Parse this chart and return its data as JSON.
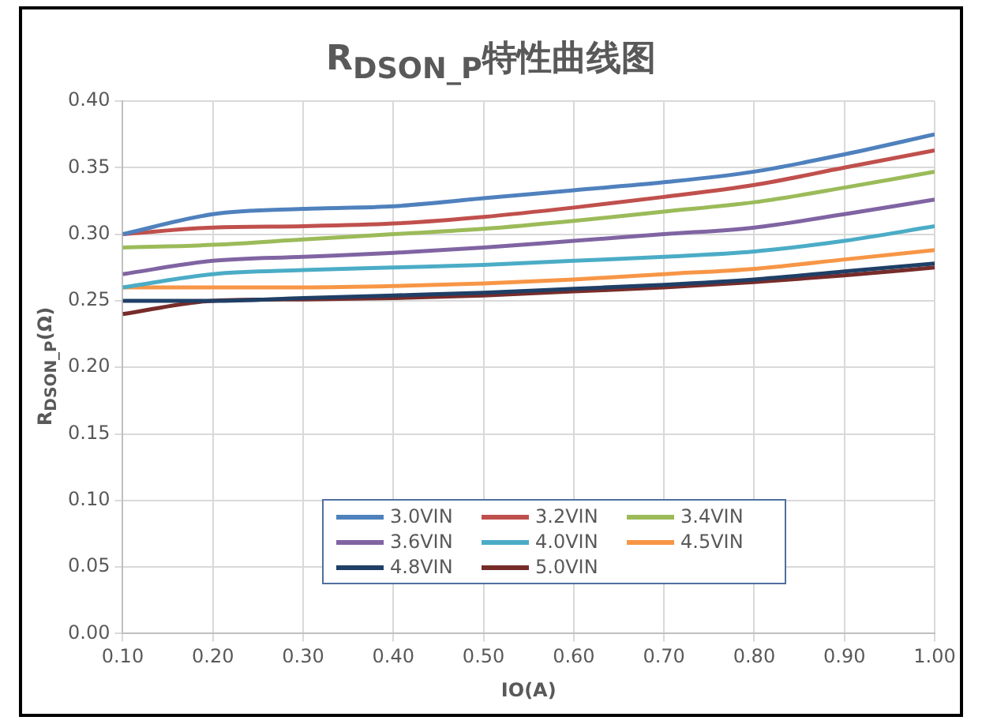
{
  "chart_data": {
    "type": "line",
    "title": "R$_{DSON_P}$特性曲线图",
    "xlabel": "IO(A)",
    "ylabel": "R$_{DSON_P}$(Ω)",
    "x": [
      0.1,
      0.2,
      0.3,
      0.4,
      0.5,
      0.6,
      0.7,
      0.8,
      0.9,
      1.0
    ],
    "xlim": [
      0.1,
      1.0
    ],
    "xticks": [
      {
        "value": 0.1,
        "label": "0.10"
      },
      {
        "value": 0.2,
        "label": "0.20"
      },
      {
        "value": 0.3,
        "label": "0.30"
      },
      {
        "value": 0.4,
        "label": "0.40"
      },
      {
        "value": 0.5,
        "label": "0.50"
      },
      {
        "value": 0.6,
        "label": "0.60"
      },
      {
        "value": 0.7,
        "label": "0.70"
      },
      {
        "value": 0.8,
        "label": "0.80"
      },
      {
        "value": 0.9,
        "label": "0.90"
      },
      {
        "value": 1.0,
        "label": "1.00"
      }
    ],
    "ylim": [
      0,
      0.4
    ],
    "yticks": [
      {
        "value": 0,
        "label": "0.00"
      },
      {
        "value": 0.05,
        "label": "0.05"
      },
      {
        "value": 0.1,
        "label": "0.10"
      },
      {
        "value": 0.15,
        "label": "0.15"
      },
      {
        "value": 0.2,
        "label": "0.20"
      },
      {
        "value": 0.25,
        "label": "0.25"
      },
      {
        "value": 0.3,
        "label": "0.30"
      },
      {
        "value": 0.35,
        "label": "0.35"
      },
      {
        "value": 0.4,
        "label": "0.40"
      }
    ],
    "grid": true,
    "legend": "bottom",
    "marker": "none",
    "line_style": "solid",
    "series": [
      {
        "name": "3.0VIN",
        "color": "#4f81bd",
        "values": [
          0.3,
          0.315,
          0.319,
          0.321,
          0.327,
          0.333,
          0.339,
          0.347,
          0.36,
          0.375
        ]
      },
      {
        "name": "3.2VIN",
        "color": "#c0504d",
        "values": [
          0.3,
          0.305,
          0.306,
          0.308,
          0.313,
          0.32,
          0.328,
          0.337,
          0.35,
          0.363
        ]
      },
      {
        "name": "3.4VIN",
        "color": "#9bbb59",
        "values": [
          0.29,
          0.292,
          0.296,
          0.3,
          0.304,
          0.31,
          0.317,
          0.324,
          0.335,
          0.347
        ]
      },
      {
        "name": "3.6VIN",
        "color": "#8064a2",
        "values": [
          0.27,
          0.28,
          0.283,
          0.286,
          0.29,
          0.295,
          0.3,
          0.305,
          0.315,
          0.326
        ]
      },
      {
        "name": "4.0VIN",
        "color": "#4bacc6",
        "values": [
          0.26,
          0.27,
          0.273,
          0.275,
          0.277,
          0.28,
          0.283,
          0.287,
          0.295,
          0.306
        ]
      },
      {
        "name": "4.5VIN",
        "color": "#f79646",
        "values": [
          0.26,
          0.26,
          0.26,
          0.261,
          0.263,
          0.266,
          0.27,
          0.274,
          0.281,
          0.288
        ]
      },
      {
        "name": "4.8VIN",
        "color": "#1f3f66",
        "values": [
          0.25,
          0.25,
          0.252,
          0.254,
          0.256,
          0.259,
          0.262,
          0.266,
          0.272,
          0.278
        ]
      },
      {
        "name": "5.0VIN",
        "color": "#772c2a",
        "values": [
          0.24,
          0.25,
          0.251,
          0.252,
          0.254,
          0.257,
          0.26,
          0.264,
          0.269,
          0.275
        ]
      }
    ]
  }
}
